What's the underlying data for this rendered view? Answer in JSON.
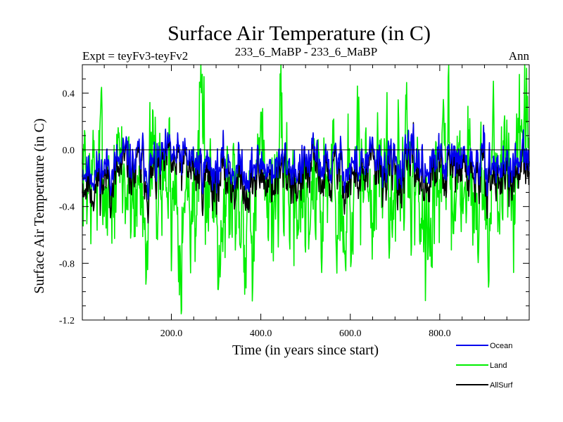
{
  "chart_data": {
    "type": "line",
    "title": "Surface Air Temperature (in C)",
    "subtitle_left": "Expt = teyFv3-teyFv2",
    "subtitle_center": "233_6_MaBP - 233_6_MaBP",
    "subtitle_right": "Ann",
    "xlabel": "Time (in years since start)",
    "ylabel": "Surface Air Temperature (in C)",
    "xlim": [
      1,
      1000
    ],
    "ylim": [
      -1.2,
      0.6
    ],
    "xticks": [
      200,
      400,
      600,
      800
    ],
    "xtick_labels": [
      "200.0",
      "400.0",
      "600.0",
      "800.0"
    ],
    "yticks": [
      -1.2,
      -0.8,
      -0.4,
      0.0,
      0.4
    ],
    "ytick_labels": [
      "-1.2",
      "-0.8",
      "-0.4",
      "0.0",
      "0.4"
    ],
    "reference_line": 0.0,
    "series": [
      {
        "name": "Land",
        "color": "#00ee00",
        "mean": -0.27,
        "amplitude": 0.3,
        "seed": 7,
        "samples": 1000
      },
      {
        "name": "AllSurf",
        "color": "#000000",
        "mean": -0.17,
        "amplitude": 0.12,
        "seed": 11,
        "samples": 1000
      },
      {
        "name": "Ocean",
        "color": "#0000ee",
        "mean": -0.09,
        "amplitude": 0.09,
        "seed": 11,
        "samples": 1000
      }
    ],
    "legend": [
      {
        "label": "Ocean",
        "color": "#0000ee"
      },
      {
        "label": "Land",
        "color": "#00ee00"
      },
      {
        "label": "AllSurf",
        "color": "#000000"
      }
    ],
    "legend_position": "bottom-right"
  }
}
